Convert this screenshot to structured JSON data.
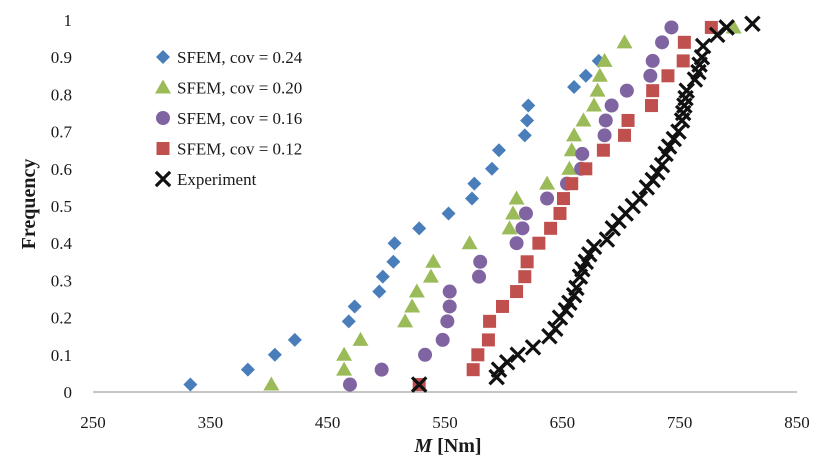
{
  "chart_data": {
    "type": "scatter",
    "xlabel_italic": "M",
    "xlabel_rest": " [Nm]",
    "ylabel": "Frequency",
    "xlim": [
      250,
      850
    ],
    "ylim": [
      0,
      1
    ],
    "x_ticks": [
      250,
      350,
      450,
      550,
      650,
      750,
      850
    ],
    "x_tick_labels": [
      "250",
      "350",
      "450",
      "550",
      "650",
      "750",
      "850"
    ],
    "y_ticks": [
      0,
      0.1,
      0.2,
      0.3,
      0.4,
      0.5,
      0.6,
      0.7,
      0.8,
      0.9,
      1
    ],
    "y_tick_labels": [
      "0",
      "0.1",
      "0.2",
      "0.3",
      "0.4",
      "0.5",
      "0.6",
      "0.7",
      "0.8",
      "0.9",
      "1"
    ],
    "grid": false,
    "legend_position": "top-left",
    "series": [
      {
        "name": "SFEM, cov = 0.24",
        "marker": "diamond",
        "color": "#4a7ebb",
        "points": [
          [
            333,
            0.02
          ],
          [
            382,
            0.06
          ],
          [
            405,
            0.1
          ],
          [
            422,
            0.14
          ],
          [
            468,
            0.19
          ],
          [
            473,
            0.23
          ],
          [
            494,
            0.27
          ],
          [
            497,
            0.31
          ],
          [
            506,
            0.35
          ],
          [
            507,
            0.4
          ],
          [
            528,
            0.44
          ],
          [
            553,
            0.48
          ],
          [
            573,
            0.52
          ],
          [
            575,
            0.56
          ],
          [
            590,
            0.6
          ],
          [
            596,
            0.65
          ],
          [
            618,
            0.69
          ],
          [
            620,
            0.73
          ],
          [
            621,
            0.77
          ],
          [
            660,
            0.82
          ],
          [
            670,
            0.85
          ],
          [
            681,
            0.89
          ]
        ]
      },
      {
        "name": "SFEM, cov = 0.20",
        "marker": "triangle",
        "color": "#9bbb59",
        "points": [
          [
            402,
            0.02
          ],
          [
            464,
            0.06
          ],
          [
            464,
            0.1
          ],
          [
            478,
            0.14
          ],
          [
            516,
            0.19
          ],
          [
            522,
            0.23
          ],
          [
            526,
            0.27
          ],
          [
            538,
            0.31
          ],
          [
            540,
            0.35
          ],
          [
            571,
            0.4
          ],
          [
            605,
            0.44
          ],
          [
            608,
            0.48
          ],
          [
            611,
            0.52
          ],
          [
            637,
            0.56
          ],
          [
            656,
            0.6
          ],
          [
            658,
            0.65
          ],
          [
            660,
            0.69
          ],
          [
            668,
            0.73
          ],
          [
            677,
            0.77
          ],
          [
            680,
            0.81
          ],
          [
            682,
            0.85
          ],
          [
            686,
            0.89
          ],
          [
            703,
            0.94
          ],
          [
            796,
            0.98
          ]
        ]
      },
      {
        "name": "SFEM, cov = 0.16",
        "marker": "circle",
        "color": "#8064a2",
        "points": [
          [
            469,
            0.02
          ],
          [
            496,
            0.06
          ],
          [
            533,
            0.1
          ],
          [
            548,
            0.14
          ],
          [
            552,
            0.19
          ],
          [
            554,
            0.23
          ],
          [
            554,
            0.27
          ],
          [
            579,
            0.31
          ],
          [
            580,
            0.35
          ],
          [
            611,
            0.4
          ],
          [
            616,
            0.44
          ],
          [
            619,
            0.48
          ],
          [
            637,
            0.52
          ],
          [
            654,
            0.56
          ],
          [
            666,
            0.6
          ],
          [
            667,
            0.64
          ],
          [
            686,
            0.69
          ],
          [
            687,
            0.73
          ],
          [
            692,
            0.77
          ],
          [
            705,
            0.81
          ],
          [
            725,
            0.85
          ],
          [
            727,
            0.89
          ],
          [
            735,
            0.94
          ],
          [
            743,
            0.98
          ]
        ]
      },
      {
        "name": "SFEM, cov = 0.12",
        "marker": "square",
        "color": "#c0504d",
        "points": [
          [
            528,
            0.02
          ],
          [
            574,
            0.06
          ],
          [
            578,
            0.1
          ],
          [
            587,
            0.14
          ],
          [
            588,
            0.19
          ],
          [
            599,
            0.23
          ],
          [
            611,
            0.27
          ],
          [
            618,
            0.31
          ],
          [
            620,
            0.35
          ],
          [
            630,
            0.4
          ],
          [
            640,
            0.44
          ],
          [
            648,
            0.48
          ],
          [
            651,
            0.52
          ],
          [
            658,
            0.56
          ],
          [
            670,
            0.6
          ],
          [
            685,
            0.65
          ],
          [
            703,
            0.69
          ],
          [
            706,
            0.73
          ],
          [
            726,
            0.77
          ],
          [
            727,
            0.81
          ],
          [
            740,
            0.85
          ],
          [
            753,
            0.89
          ],
          [
            754,
            0.94
          ],
          [
            777,
            0.98
          ]
        ]
      },
      {
        "name": "Experiment",
        "marker": "x",
        "color": "#111111",
        "points": [
          [
            528,
            0.02
          ],
          [
            594,
            0.04
          ],
          [
            596,
            0.06
          ],
          [
            603,
            0.08
          ],
          [
            612,
            0.1
          ],
          [
            625,
            0.12
          ],
          [
            639,
            0.15
          ],
          [
            644,
            0.17
          ],
          [
            648,
            0.2
          ],
          [
            653,
            0.22
          ],
          [
            656,
            0.24
          ],
          [
            660,
            0.26
          ],
          [
            662,
            0.28
          ],
          [
            665,
            0.31
          ],
          [
            667,
            0.33
          ],
          [
            670,
            0.35
          ],
          [
            673,
            0.37
          ],
          [
            677,
            0.39
          ],
          [
            688,
            0.41
          ],
          [
            693,
            0.44
          ],
          [
            698,
            0.46
          ],
          [
            704,
            0.48
          ],
          [
            710,
            0.5
          ],
          [
            716,
            0.52
          ],
          [
            722,
            0.55
          ],
          [
            727,
            0.57
          ],
          [
            731,
            0.59
          ],
          [
            735,
            0.61
          ],
          [
            738,
            0.64
          ],
          [
            741,
            0.66
          ],
          [
            745,
            0.68
          ],
          [
            749,
            0.7
          ],
          [
            752,
            0.73
          ],
          [
            753,
            0.75
          ],
          [
            754,
            0.77
          ],
          [
            755,
            0.79
          ],
          [
            756,
            0.81
          ],
          [
            763,
            0.84
          ],
          [
            766,
            0.86
          ],
          [
            767,
            0.88
          ],
          [
            769,
            0.9
          ],
          [
            770,
            0.93
          ],
          [
            782,
            0.96
          ],
          [
            790,
            0.98
          ],
          [
            812,
            0.99
          ]
        ]
      }
    ]
  }
}
